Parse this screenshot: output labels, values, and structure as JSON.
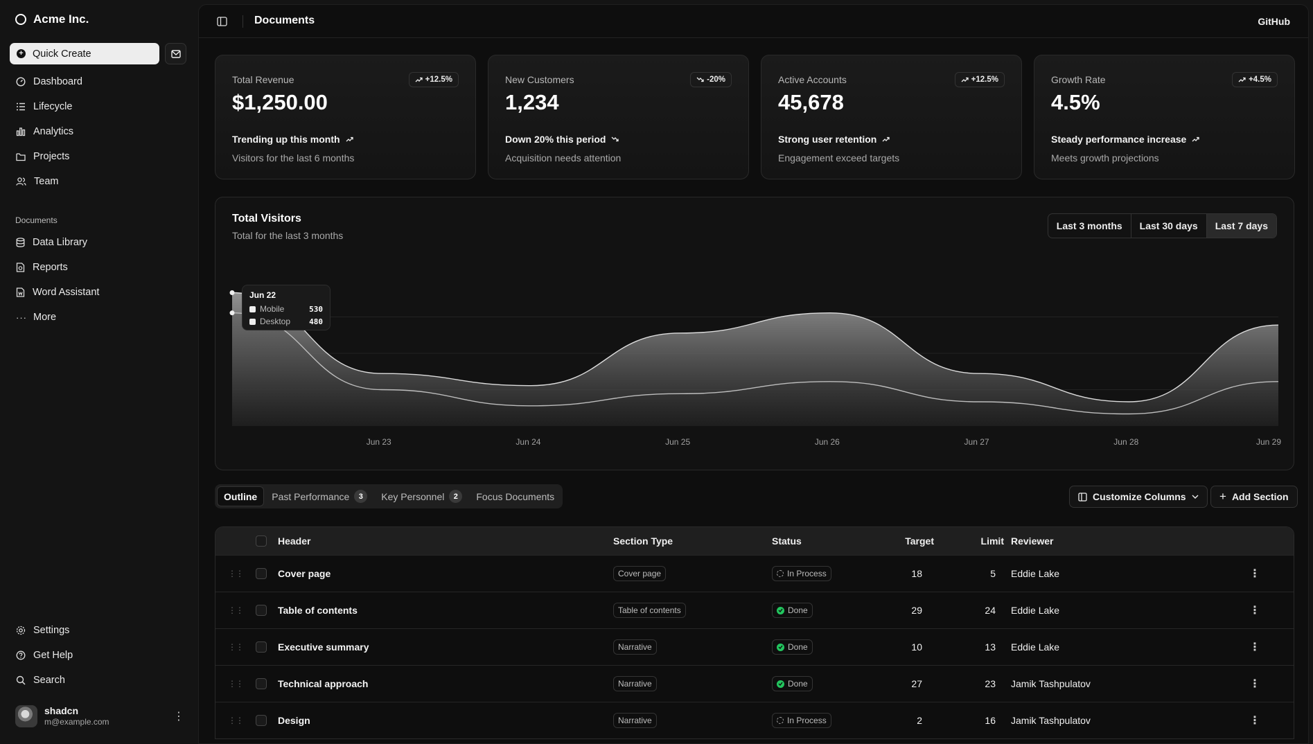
{
  "sidebar": {
    "brand": "Acme Inc.",
    "quick_create": "Quick Create",
    "nav": [
      {
        "label": "Dashboard",
        "icon": "dashboard-icon"
      },
      {
        "label": "Lifecycle",
        "icon": "list-icon"
      },
      {
        "label": "Analytics",
        "icon": "bar-chart-icon"
      },
      {
        "label": "Projects",
        "icon": "folder-icon"
      },
      {
        "label": "Team",
        "icon": "users-icon"
      }
    ],
    "documents_heading": "Documents",
    "documents": [
      {
        "label": "Data Library",
        "icon": "database-icon"
      },
      {
        "label": "Reports",
        "icon": "report-icon"
      },
      {
        "label": "Word Assistant",
        "icon": "file-word-icon"
      },
      {
        "label": "More",
        "icon": "dots-icon"
      }
    ],
    "footer": [
      {
        "label": "Settings",
        "icon": "gear-icon"
      },
      {
        "label": "Get Help",
        "icon": "help-icon"
      },
      {
        "label": "Search",
        "icon": "search-icon"
      }
    ],
    "user": {
      "name": "shadcn",
      "email": "m@example.com"
    }
  },
  "header": {
    "title": "Documents",
    "github": "GitHub"
  },
  "cards": [
    {
      "label": "Total Revenue",
      "value": "$1,250.00",
      "badge": "+12.5%",
      "trend": "up",
      "foot1": "Trending up this month",
      "foot2": "Visitors for the last 6 months"
    },
    {
      "label": "New Customers",
      "value": "1,234",
      "badge": "-20%",
      "trend": "down",
      "foot1": "Down 20% this period",
      "foot2": "Acquisition needs attention"
    },
    {
      "label": "Active Accounts",
      "value": "45,678",
      "badge": "+12.5%",
      "trend": "up",
      "foot1": "Strong user retention",
      "foot2": "Engagement exceed targets"
    },
    {
      "label": "Growth Rate",
      "value": "4.5%",
      "badge": "+4.5%",
      "trend": "up",
      "foot1": "Steady performance increase",
      "foot2": "Meets growth projections"
    }
  ],
  "chart": {
    "title": "Total Visitors",
    "subtitle": "Total for the last 3 months",
    "ranges": [
      "Last 3 months",
      "Last 30 days",
      "Last 7 days"
    ],
    "active_range": "Last 7 days",
    "tooltip": {
      "date": "Jun 22",
      "mobile_label": "Mobile",
      "mobile_value": "530",
      "desktop_label": "Desktop",
      "desktop_value": "480"
    }
  },
  "chart_data": {
    "type": "area",
    "x": [
      "Jun 22",
      "Jun 23",
      "Jun 24",
      "Jun 25",
      "Jun 26",
      "Jun 27",
      "Jun 28",
      "Jun 29"
    ],
    "x_tick_labels": [
      "Jun 23",
      "Jun 24",
      "Jun 25",
      "Jun 26",
      "Jun 27",
      "Jun 28",
      "Jun 29"
    ],
    "series": [
      {
        "name": "Mobile",
        "values": [
          530,
          330,
          300,
          430,
          480,
          330,
          260,
          450
        ]
      },
      {
        "name": "Desktop",
        "values": [
          480,
          290,
          250,
          280,
          310,
          260,
          230,
          310
        ]
      }
    ],
    "ylim": [
      200,
      560
    ],
    "stacked": false,
    "grid": true
  },
  "tabs": [
    {
      "label": "Outline",
      "count": ""
    },
    {
      "label": "Past Performance",
      "count": "3"
    },
    {
      "label": "Key Personnel",
      "count": "2"
    },
    {
      "label": "Focus Documents",
      "count": ""
    }
  ],
  "toolbar": {
    "customize": "Customize Columns",
    "add": "Add Section"
  },
  "table": {
    "headers": {
      "header": "Header",
      "section_type": "Section Type",
      "status": "Status",
      "target": "Target",
      "limit": "Limit",
      "reviewer": "Reviewer"
    },
    "rows": [
      {
        "header": "Cover page",
        "type": "Cover page",
        "status": "In Process",
        "target": "18",
        "limit": "5",
        "reviewer": "Eddie Lake"
      },
      {
        "header": "Table of contents",
        "type": "Table of contents",
        "status": "Done",
        "target": "29",
        "limit": "24",
        "reviewer": "Eddie Lake"
      },
      {
        "header": "Executive summary",
        "type": "Narrative",
        "status": "Done",
        "target": "10",
        "limit": "13",
        "reviewer": "Eddie Lake"
      },
      {
        "header": "Technical approach",
        "type": "Narrative",
        "status": "Done",
        "target": "27",
        "limit": "23",
        "reviewer": "Jamik Tashpulatov"
      },
      {
        "header": "Design",
        "type": "Narrative",
        "status": "In Process",
        "target": "2",
        "limit": "16",
        "reviewer": "Jamik Tashpulatov"
      }
    ]
  }
}
